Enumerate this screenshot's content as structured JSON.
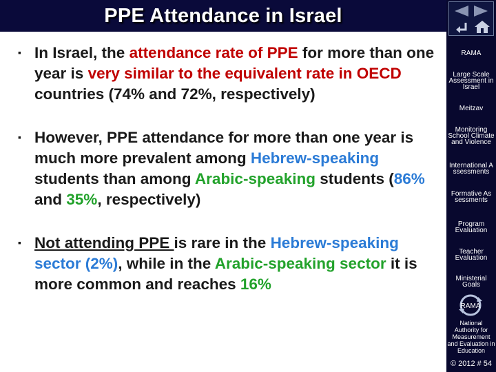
{
  "title": "PPE Attendance in Israel",
  "bullets": [
    {
      "parts": [
        {
          "text": "In Israel, the ",
          "color": "default"
        },
        {
          "text": "attendance rate of PPE",
          "color": "red"
        },
        {
          "text": " for more than one year is ",
          "color": "default"
        },
        {
          "text": "very similar to the equivalent rate in OECD",
          "color": "red"
        },
        {
          "text": " countries (74% and 72%, respectively)",
          "color": "default"
        }
      ]
    },
    {
      "parts": [
        {
          "text": " However, PPE attendance for more than one year is much more prevalent among ",
          "color": "default"
        },
        {
          "text": "Hebrew-speaking",
          "color": "blue"
        },
        {
          "text": " students than among ",
          "color": "default"
        },
        {
          "text": "Arabic-speaking",
          "color": "green"
        },
        {
          "text": " students (",
          "color": "default"
        },
        {
          "text": "86%",
          "color": "blue"
        },
        {
          "text": " and ",
          "color": "default"
        },
        {
          "text": "35%",
          "color": "green"
        },
        {
          "text": ", respectively)",
          "color": "default"
        }
      ]
    },
    {
      "parts": [
        {
          "text": "Not attending PPE ",
          "color": "underline"
        },
        {
          "text": "is rare in the ",
          "color": "default"
        },
        {
          "text": "Hebrew-speaking sector (2%)",
          "color": "blue"
        },
        {
          "text": ", while in the ",
          "color": "default"
        },
        {
          "text": "Arabic-speaking sector",
          "color": "green"
        },
        {
          "text": " it is more common and reaches ",
          "color": "default"
        },
        {
          "text": "16%",
          "color": "green"
        }
      ]
    }
  ],
  "sidebar": {
    "items": [
      {
        "label": "RAMA"
      },
      {
        "label": "Large Scale Assessment in Israel"
      },
      {
        "label": "Meitzav"
      },
      {
        "label": "Monitoring School Climate and Violence"
      },
      {
        "label": "International Assessments"
      },
      {
        "label": "Formative Assessments"
      },
      {
        "label": "Program Evaluation"
      },
      {
        "label": "Teacher Evaluation"
      },
      {
        "label": "Ministerial Goals"
      }
    ],
    "logo_text": "RAMA",
    "footer": "National Authority for Measurement and Evaluation in Education",
    "copyright": "© 2012 # 54"
  },
  "colors": {
    "title_bar": "#0a0a3a",
    "sidebar": "#08082e",
    "red": "#c00000",
    "blue": "#2b7bd6",
    "green": "#22a22b",
    "text": "#1a1a1a"
  }
}
